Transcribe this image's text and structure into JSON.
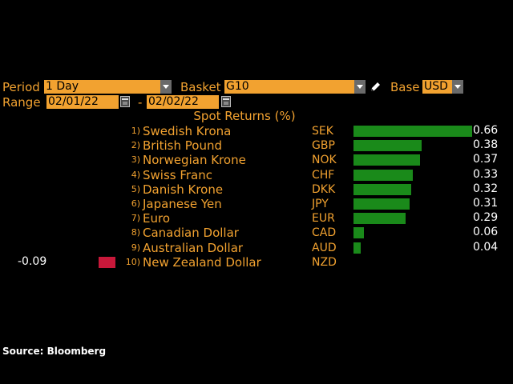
{
  "controls": {
    "period_label": "Period",
    "period_value": "1 Day",
    "basket_label": "Basket",
    "basket_value": "G10",
    "base_label": "Base",
    "base_value": "USD",
    "range_label": "Range",
    "range_start": "02/01/22",
    "range_sep": "-",
    "range_end": "02/02/22"
  },
  "chart_data": {
    "type": "bar",
    "title": "Spot Returns (%)",
    "categories": [
      "Swedish Krona",
      "British Pound",
      "Norwegian Krone",
      "Swiss Franc",
      "Danish Krone",
      "Japanese Yen",
      "Euro",
      "Canadian Dollar",
      "Australian Dollar",
      "New Zealand Dollar"
    ],
    "codes": [
      "SEK",
      "GBP",
      "NOK",
      "CHF",
      "DKK",
      "JPY",
      "EUR",
      "CAD",
      "AUD",
      "NZD"
    ],
    "ranks": [
      "1)",
      "2)",
      "3)",
      "4)",
      "5)",
      "6)",
      "7)",
      "8)",
      "9)",
      "10)"
    ],
    "values": [
      0.66,
      0.38,
      0.37,
      0.33,
      0.32,
      0.31,
      0.29,
      0.06,
      0.04,
      -0.09
    ],
    "value_labels": [
      "0.66",
      "0.38",
      "0.37",
      "0.33",
      "0.32",
      "0.31",
      "0.29",
      "0.06",
      "0.04",
      "-0.09"
    ],
    "colors": {
      "positive": "#1a8a1a",
      "negative": "#c8183a"
    }
  },
  "footer": {
    "source": "Source: Bloomberg"
  }
}
